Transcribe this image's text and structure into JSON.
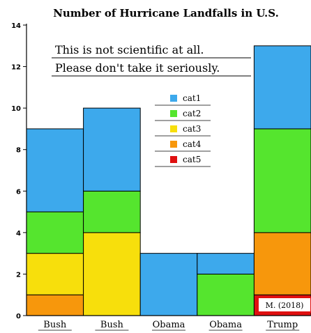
{
  "chart_data": {
    "type": "bar",
    "stacked": true,
    "title": "Number of Hurricane Landfalls in U.S.",
    "categories": [
      "Bush",
      "Bush",
      "Obama",
      "Obama",
      "Trump"
    ],
    "series": [
      {
        "name": "cat1",
        "values": [
          4,
          4,
          3,
          1,
          4
        ]
      },
      {
        "name": "cat2",
        "values": [
          2,
          2,
          0,
          2,
          5
        ]
      },
      {
        "name": "cat3",
        "values": [
          2,
          4,
          0,
          0,
          0
        ]
      },
      {
        "name": "cat4",
        "values": [
          1,
          0,
          0,
          0,
          3
        ]
      },
      {
        "name": "cat5",
        "values": [
          0,
          0,
          0,
          0,
          1
        ]
      }
    ],
    "ylim": [
      0,
      14
    ],
    "yticks": [
      0,
      2,
      4,
      6,
      8,
      10,
      12,
      14
    ],
    "xlabel": "",
    "ylabel": "",
    "annotations": [
      "This is not scientific at all.",
      "Please don't take it seriously."
    ],
    "signature": "M. (2018)",
    "legend_position": "center"
  },
  "colors": {
    "cat1": "#3da9ec",
    "cat2": "#55e52e",
    "cat3": "#f7df0c",
    "cat4": "#f7970c",
    "cat5": "#df1010"
  }
}
